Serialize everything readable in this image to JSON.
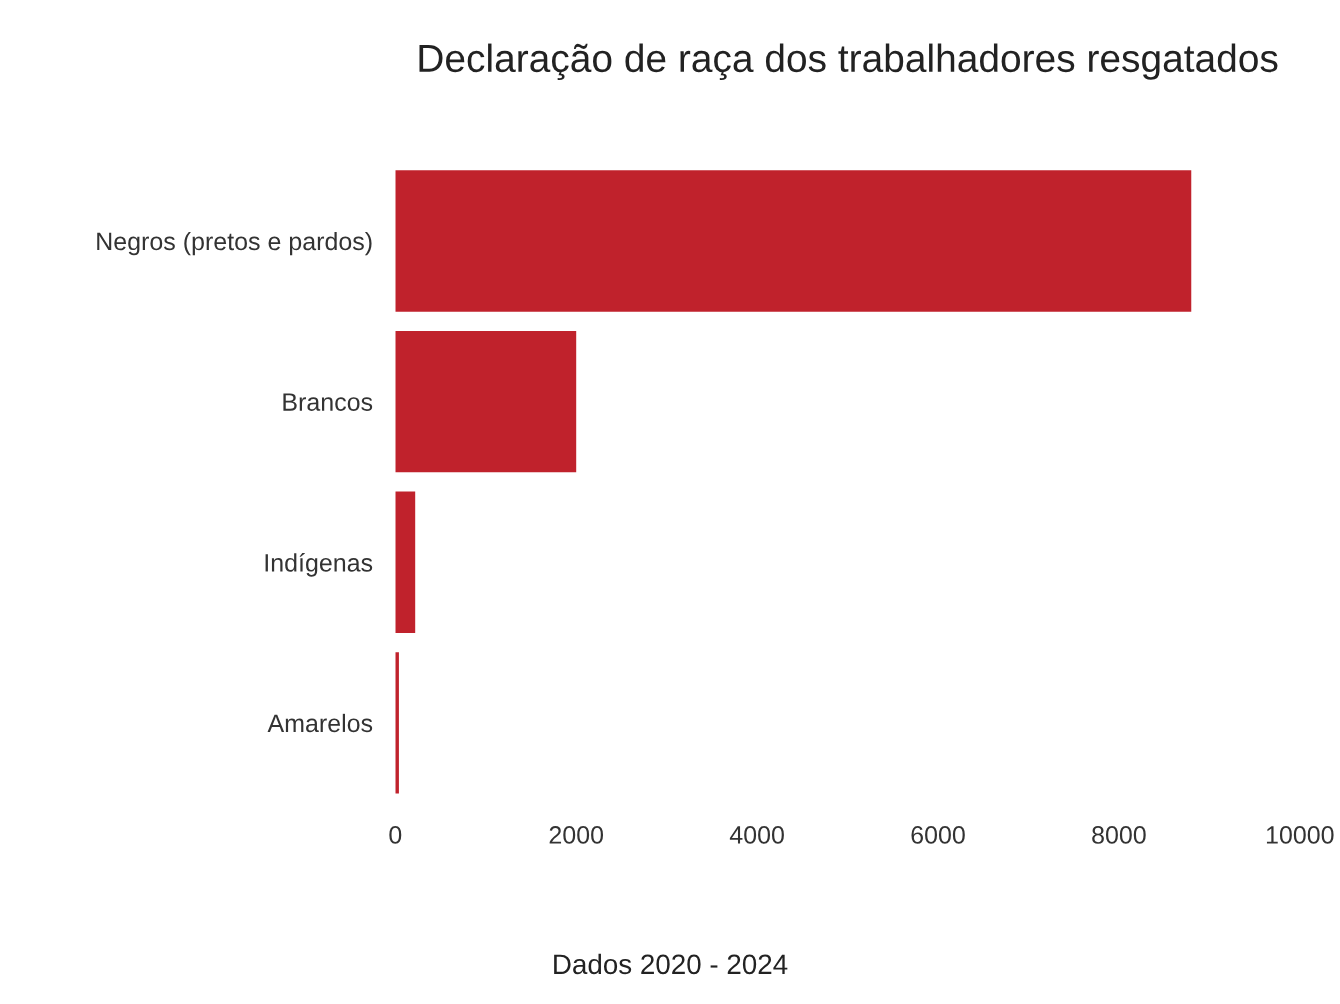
{
  "chart_data": {
    "type": "bar",
    "orientation": "horizontal",
    "title": "Declaração de raça dos trabalhadores resgatados",
    "categories": [
      "Negros (pretos e pardos)",
      "Brancos",
      "Indígenas",
      "Amarelos"
    ],
    "values": [
      8800,
      2000,
      220,
      40
    ],
    "color": "#c0222c",
    "xlim": [
      0,
      10000
    ],
    "xticks": [
      0,
      2000,
      4000,
      6000,
      8000,
      10000
    ],
    "grid": false,
    "annotations": [
      "Dados 2020 - 2024"
    ]
  }
}
